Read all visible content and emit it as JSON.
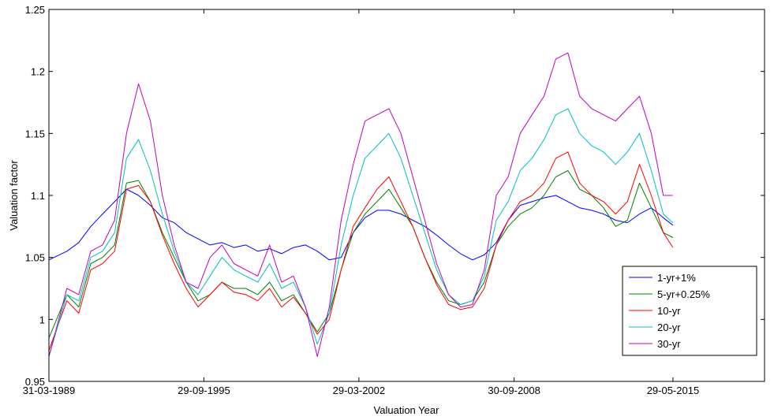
{
  "chart_data": {
    "type": "line",
    "title": "",
    "xlabel": "Valuation Year",
    "ylabel": "Valuation factor",
    "ylim": [
      0.95,
      1.25
    ],
    "xlim": [
      "1989-03-31",
      "2019-03-31"
    ],
    "y_ticks": [
      "0.95",
      "1",
      "1.05",
      "1.1",
      "1.15",
      "1.2",
      "1.25"
    ],
    "x_ticks": [
      {
        "date": "1989-03-31",
        "label": "31-03-1989"
      },
      {
        "date": "1995-09-29",
        "label": "29-09-1995"
      },
      {
        "date": "2002-03-29",
        "label": "29-03-2002"
      },
      {
        "date": "2008-09-30",
        "label": "30-09-2008"
      },
      {
        "date": "2015-05-29",
        "label": "29-05-2015"
      }
    ],
    "grid": false,
    "legend_position": "bottom-right",
    "x": [
      "1989-03-31",
      "1990-01-01",
      "1990-07-01",
      "1991-01-01",
      "1991-07-01",
      "1992-01-01",
      "1992-07-01",
      "1993-01-01",
      "1993-07-01",
      "1994-01-01",
      "1994-07-01",
      "1995-01-01",
      "1995-07-01",
      "1996-01-01",
      "1996-07-01",
      "1997-01-01",
      "1997-07-01",
      "1998-01-01",
      "1998-07-01",
      "1999-01-01",
      "1999-07-01",
      "2000-01-01",
      "2000-07-01",
      "2001-01-01",
      "2001-07-01",
      "2002-01-01",
      "2002-07-01",
      "2003-01-01",
      "2003-07-01",
      "2004-01-01",
      "2004-07-01",
      "2005-01-01",
      "2005-07-01",
      "2006-01-01",
      "2006-07-01",
      "2007-01-01",
      "2007-07-01",
      "2008-01-01",
      "2008-07-01",
      "2009-01-01",
      "2009-07-01",
      "2010-01-01",
      "2010-07-01",
      "2011-01-01",
      "2011-07-01",
      "2012-01-01",
      "2012-07-01",
      "2013-01-01",
      "2013-07-01",
      "2014-01-01",
      "2014-07-01",
      "2015-01-01",
      "2015-05-29"
    ],
    "series": [
      {
        "name": "1-yr+1%",
        "color": "#0000ff",
        "values": [
          1.048,
          1.055,
          1.062,
          1.075,
          1.085,
          1.095,
          1.105,
          1.1,
          1.092,
          1.082,
          1.078,
          1.07,
          1.065,
          1.06,
          1.062,
          1.058,
          1.06,
          1.055,
          1.057,
          1.053,
          1.058,
          1.06,
          1.055,
          1.048,
          1.05,
          1.07,
          1.082,
          1.088,
          1.088,
          1.085,
          1.08,
          1.075,
          1.068,
          1.06,
          1.053,
          1.048,
          1.052,
          1.062,
          1.08,
          1.092,
          1.095,
          1.098,
          1.1,
          1.095,
          1.09,
          1.088,
          1.085,
          1.08,
          1.078,
          1.085,
          1.09,
          1.082,
          1.076
        ]
      },
      {
        "name": "5-yr+0.25%",
        "color": "#008000",
        "values": [
          0.985,
          1.02,
          1.01,
          1.045,
          1.05,
          1.06,
          1.11,
          1.112,
          1.095,
          1.07,
          1.05,
          1.03,
          1.015,
          1.02,
          1.03,
          1.025,
          1.025,
          1.02,
          1.03,
          1.015,
          1.02,
          1.005,
          0.99,
          1.005,
          1.04,
          1.07,
          1.085,
          1.095,
          1.105,
          1.09,
          1.075,
          1.05,
          1.03,
          1.015,
          1.012,
          1.015,
          1.03,
          1.06,
          1.075,
          1.085,
          1.09,
          1.1,
          1.115,
          1.12,
          1.105,
          1.1,
          1.09,
          1.075,
          1.08,
          1.11,
          1.09,
          1.07,
          1.066
        ]
      },
      {
        "name": "10-yr",
        "color": "#ff0000",
        "values": [
          0.975,
          1.015,
          1.005,
          1.04,
          1.045,
          1.055,
          1.105,
          1.108,
          1.095,
          1.068,
          1.045,
          1.025,
          1.01,
          1.02,
          1.03,
          1.022,
          1.02,
          1.015,
          1.025,
          1.01,
          1.018,
          1.005,
          0.988,
          1.0,
          1.04,
          1.075,
          1.09,
          1.105,
          1.115,
          1.095,
          1.075,
          1.05,
          1.028,
          1.012,
          1.008,
          1.01,
          1.025,
          1.06,
          1.08,
          1.095,
          1.1,
          1.11,
          1.13,
          1.135,
          1.11,
          1.1,
          1.095,
          1.085,
          1.095,
          1.125,
          1.1,
          1.07,
          1.058
        ]
      },
      {
        "name": "20-yr",
        "color": "#00bfbf",
        "values": [
          0.97,
          1.02,
          1.015,
          1.05,
          1.055,
          1.07,
          1.13,
          1.145,
          1.12,
          1.085,
          1.055,
          1.03,
          1.02,
          1.035,
          1.05,
          1.04,
          1.035,
          1.03,
          1.045,
          1.025,
          1.03,
          1.01,
          0.98,
          1.005,
          1.06,
          1.1,
          1.13,
          1.14,
          1.15,
          1.13,
          1.1,
          1.07,
          1.04,
          1.02,
          1.012,
          1.015,
          1.035,
          1.08,
          1.095,
          1.12,
          1.13,
          1.145,
          1.165,
          1.17,
          1.15,
          1.14,
          1.135,
          1.125,
          1.135,
          1.15,
          1.12,
          1.085,
          1.078
        ]
      },
      {
        "name": "30-yr",
        "color": "#bf00bf",
        "values": [
          0.97,
          1.025,
          1.02,
          1.055,
          1.06,
          1.08,
          1.15,
          1.19,
          1.16,
          1.1,
          1.06,
          1.03,
          1.025,
          1.05,
          1.06,
          1.045,
          1.04,
          1.035,
          1.06,
          1.03,
          1.035,
          1.01,
          0.97,
          1.01,
          1.08,
          1.125,
          1.16,
          1.165,
          1.17,
          1.15,
          1.115,
          1.08,
          1.045,
          1.02,
          1.01,
          1.012,
          1.04,
          1.1,
          1.115,
          1.15,
          1.165,
          1.18,
          1.21,
          1.215,
          1.18,
          1.17,
          1.165,
          1.16,
          1.17,
          1.18,
          1.15,
          1.1,
          1.1
        ]
      }
    ]
  }
}
